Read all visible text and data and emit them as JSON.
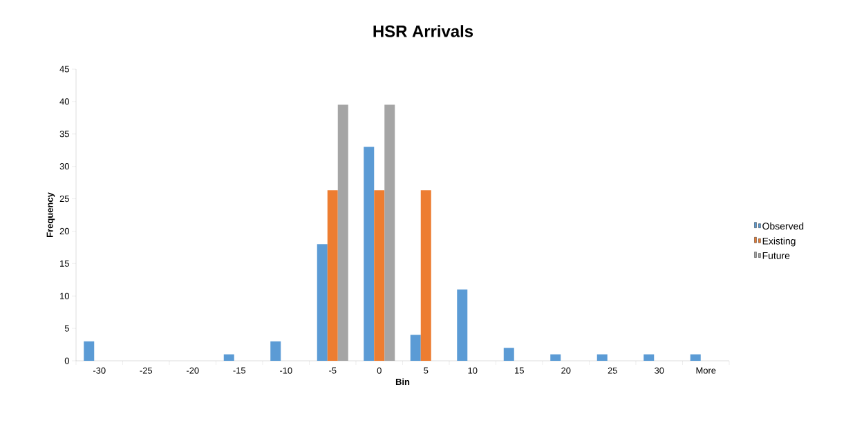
{
  "chart_data": {
    "type": "bar",
    "title": "HSR Arrivals",
    "xlabel": "Bin",
    "ylabel": "Frequency",
    "categories": [
      "-30",
      "-25",
      "-20",
      "-15",
      "-10",
      "-5",
      "0",
      "5",
      "10",
      "15",
      "20",
      "25",
      "30",
      "More"
    ],
    "series": [
      {
        "name": "Observed",
        "color": "#5b9bd5",
        "values": [
          3,
          0,
          0,
          1,
          3,
          18,
          33,
          4,
          11,
          2,
          1,
          1,
          1,
          1
        ]
      },
      {
        "name": "Existing",
        "color": "#ed7d31",
        "values": [
          0,
          0,
          0,
          0,
          0,
          26.3,
          26.3,
          26.3,
          0,
          0,
          0,
          0,
          0,
          0
        ]
      },
      {
        "name": "Future",
        "color": "#a5a5a5",
        "values": [
          0,
          0,
          0,
          0,
          0,
          39.5,
          39.5,
          0,
          0,
          0,
          0,
          0,
          0,
          0
        ]
      }
    ],
    "ylim": [
      0,
      45
    ],
    "yticks": [
      0,
      5,
      10,
      15,
      20,
      25,
      30,
      35,
      40,
      45
    ],
    "legend": "right"
  }
}
